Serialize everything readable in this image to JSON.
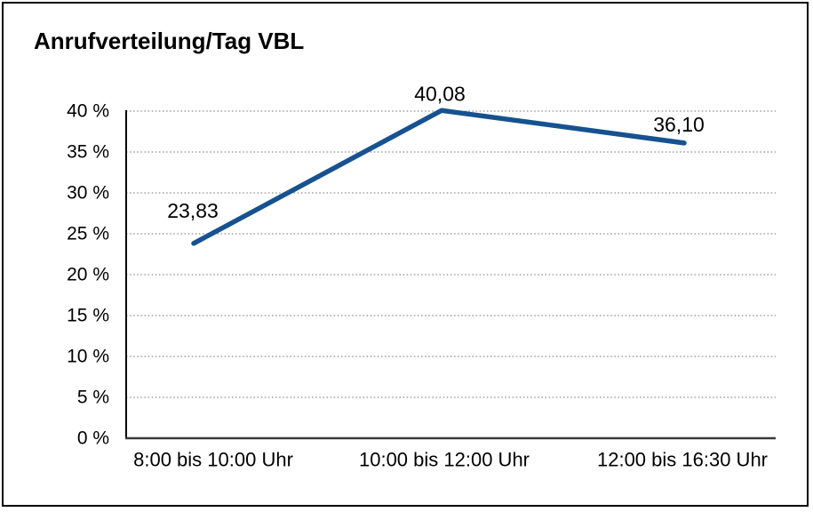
{
  "title": "Anrufverteilung/Tag VBL",
  "chart_data": {
    "type": "line",
    "title": "Anrufverteilung/Tag VBL",
    "categories": [
      "8:00 bis 10:00 Uhr",
      "10:00 bis 12:00 Uhr",
      "12:00 bis 16:30 Uhr"
    ],
    "values": [
      23.83,
      40.08,
      36.1
    ],
    "value_labels": [
      "23,83",
      "40,08",
      "36,10"
    ],
    "y_ticks": [
      0,
      5,
      10,
      15,
      20,
      25,
      30,
      35,
      40
    ],
    "y_tick_labels": [
      "0 %",
      "5 %",
      "10 %",
      "15 %",
      "20 %",
      "25 %",
      "30 %",
      "35 %",
      "40 %"
    ],
    "ylim": [
      0,
      40
    ],
    "xlabel": "",
    "ylabel": "",
    "grid": "horizontal-dotted",
    "legend": "none",
    "line_color": "#175290",
    "axis_color": "#000000",
    "text_color": "#000000"
  }
}
